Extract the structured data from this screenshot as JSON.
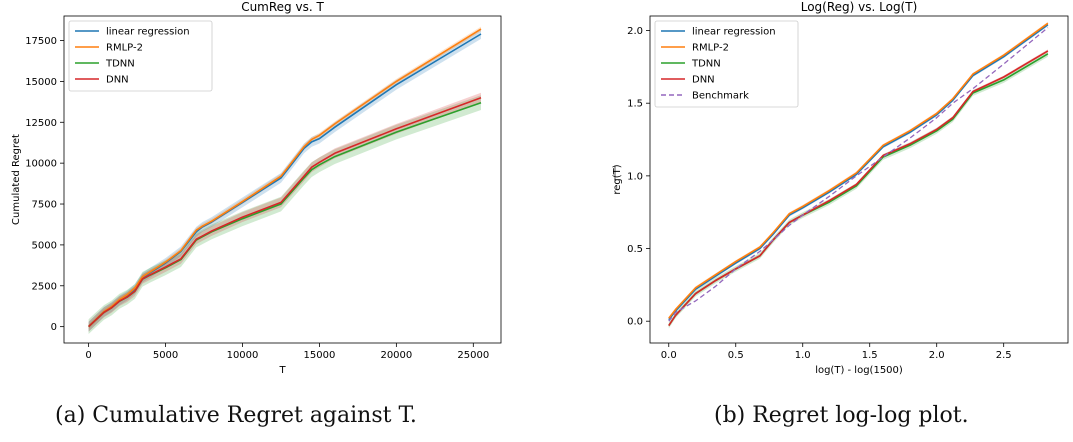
{
  "colors": {
    "linear regression": "#1f77b4",
    "RMLP-2": "#ff7f0e",
    "TDNN": "#2ca02c",
    "DNN": "#d62728",
    "Benchmark": "#9467bd"
  },
  "captions": {
    "a": "(a) Cumulative Regret against T.",
    "b": "(b) Regret log-log plot."
  },
  "chart_data": [
    {
      "type": "line",
      "title": "CumReg vs. T",
      "xlabel": "T",
      "ylabel": "Cumulated Regret",
      "xlim": [
        -1600,
        26800
      ],
      "ylim": [
        -1000,
        19000
      ],
      "xticks": [
        0,
        5000,
        10000,
        15000,
        20000,
        25000
      ],
      "yticks": [
        0,
        2500,
        5000,
        7500,
        10000,
        12500,
        15000,
        17500
      ],
      "legend": "top-left",
      "series": [
        {
          "name": "linear regression",
          "x": [
            0,
            500,
            1000,
            1500,
            2000,
            2500,
            3000,
            3500,
            4000,
            5000,
            6000,
            7000,
            7400,
            8000,
            10000,
            12500,
            13000,
            14000,
            14500,
            15000,
            16000,
            20000,
            25500
          ],
          "y": [
            0,
            450,
            900,
            1200,
            1600,
            1900,
            2300,
            3000,
            3300,
            3900,
            4600,
            5800,
            6100,
            6400,
            7600,
            9100,
            9700,
            10900,
            11300,
            11500,
            12200,
            14800,
            17900
          ],
          "band": 300
        },
        {
          "name": "RMLP-2",
          "x": [
            0,
            500,
            1000,
            1500,
            2000,
            2500,
            3000,
            3500,
            4000,
            5000,
            6000,
            7000,
            7400,
            8000,
            10000,
            12500,
            13000,
            14000,
            14500,
            15000,
            16000,
            20000,
            25500
          ],
          "y": [
            0,
            460,
            920,
            1230,
            1650,
            1950,
            2350,
            3050,
            3350,
            3950,
            4650,
            5900,
            6150,
            6450,
            7650,
            9200,
            9800,
            11000,
            11450,
            11700,
            12400,
            15000,
            18200
          ],
          "band": 150
        },
        {
          "name": "TDNN",
          "x": [
            0,
            500,
            1000,
            1500,
            2000,
            2500,
            3000,
            3500,
            4000,
            5000,
            6000,
            7000,
            7400,
            8000,
            10000,
            12500,
            14000,
            14500,
            15000,
            16000,
            20000,
            25500
          ],
          "y": [
            0,
            440,
            870,
            1150,
            1550,
            1800,
            2150,
            2900,
            3150,
            3600,
            4100,
            5300,
            5500,
            5800,
            6600,
            7500,
            9100,
            9600,
            9900,
            10400,
            11900,
            13700
          ],
          "band": 450
        },
        {
          "name": "DNN",
          "x": [
            0,
            500,
            1000,
            1500,
            2000,
            2500,
            3000,
            3500,
            4000,
            5000,
            6000,
            7000,
            7400,
            8000,
            10000,
            12500,
            14000,
            14500,
            15000,
            16000,
            20000,
            25500
          ],
          "y": [
            0,
            445,
            880,
            1160,
            1560,
            1810,
            2170,
            2920,
            3170,
            3650,
            4150,
            5350,
            5550,
            5850,
            6700,
            7600,
            9200,
            9750,
            10050,
            10600,
            12100,
            14000
          ],
          "band": 300
        }
      ]
    },
    {
      "type": "line",
      "title": "Log(Reg) vs. Log(T)",
      "xlabel": "log(T) - log(1500)",
      "ylabel": "reg(T)",
      "xlim": [
        -0.14,
        2.98
      ],
      "ylim": [
        -0.15,
        2.1
      ],
      "xticks": [
        0.0,
        0.5,
        1.0,
        1.5,
        2.0,
        2.5
      ],
      "yticks": [
        0.0,
        0.5,
        1.0,
        1.5,
        2.0
      ],
      "legend": "top-left",
      "series": [
        {
          "name": "linear regression",
          "x": [
            0.0,
            0.05,
            0.2,
            0.35,
            0.5,
            0.68,
            0.78,
            0.9,
            1.0,
            1.2,
            1.4,
            1.6,
            1.8,
            2.0,
            2.12,
            2.27,
            2.5,
            2.83
          ],
          "y": [
            0.01,
            0.07,
            0.22,
            0.31,
            0.4,
            0.5,
            0.6,
            0.73,
            0.78,
            0.89,
            1.01,
            1.2,
            1.3,
            1.42,
            1.52,
            1.69,
            1.82,
            2.04
          ],
          "band": 0.01
        },
        {
          "name": "RMLP-2",
          "x": [
            0.0,
            0.05,
            0.2,
            0.35,
            0.5,
            0.68,
            0.78,
            0.9,
            1.0,
            1.2,
            1.4,
            1.6,
            1.8,
            2.0,
            2.12,
            2.27,
            2.5,
            2.83
          ],
          "y": [
            0.02,
            0.08,
            0.23,
            0.32,
            0.41,
            0.51,
            0.61,
            0.74,
            0.79,
            0.9,
            1.02,
            1.21,
            1.31,
            1.43,
            1.53,
            1.7,
            1.83,
            2.05
          ],
          "band": 0.01
        },
        {
          "name": "TDNN",
          "x": [
            0.0,
            0.05,
            0.2,
            0.35,
            0.5,
            0.68,
            0.78,
            0.9,
            1.0,
            1.2,
            1.4,
            1.6,
            1.8,
            2.0,
            2.12,
            2.27,
            2.5,
            2.83
          ],
          "y": [
            -0.03,
            0.04,
            0.19,
            0.28,
            0.36,
            0.45,
            0.56,
            0.68,
            0.73,
            0.82,
            0.93,
            1.13,
            1.21,
            1.31,
            1.39,
            1.57,
            1.66,
            1.84
          ],
          "band": 0.02
        },
        {
          "name": "DNN",
          "x": [
            0.0,
            0.05,
            0.2,
            0.35,
            0.5,
            0.68,
            0.78,
            0.9,
            1.0,
            1.2,
            1.4,
            1.6,
            1.8,
            2.0,
            2.12,
            2.27,
            2.5,
            2.83
          ],
          "y": [
            -0.03,
            0.04,
            0.19,
            0.28,
            0.36,
            0.45,
            0.56,
            0.68,
            0.73,
            0.83,
            0.94,
            1.14,
            1.22,
            1.32,
            1.4,
            1.58,
            1.68,
            1.86
          ],
          "band": 0.01
        },
        {
          "name": "Benchmark",
          "dashed": true,
          "x": [
            0.0,
            0.05,
            0.2,
            0.35,
            0.5,
            0.68,
            0.78,
            0.9,
            1.0,
            1.2,
            1.4,
            1.6,
            1.8,
            2.0,
            2.12,
            2.27,
            2.5,
            2.83
          ],
          "y": [
            0.0,
            0.06,
            0.14,
            0.24,
            0.36,
            0.48,
            0.56,
            0.66,
            0.73,
            0.86,
            1.0,
            1.13,
            1.26,
            1.4,
            1.5,
            1.6,
            1.77,
            2.02
          ]
        }
      ]
    }
  ]
}
